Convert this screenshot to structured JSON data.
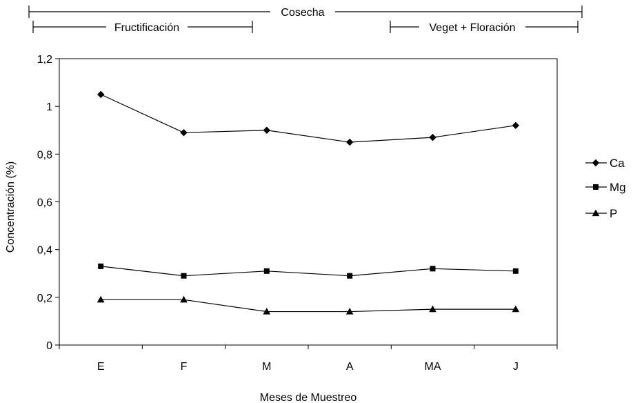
{
  "chart_data": {
    "type": "line",
    "title": "",
    "xlabel": "Meses de Muestreo",
    "ylabel": "Concentración (%)",
    "categories": [
      "E",
      "F",
      "M",
      "A",
      "MA",
      "J"
    ],
    "ylim": [
      0,
      1.2
    ],
    "yticks": [
      {
        "value": 0,
        "label": "0"
      },
      {
        "value": 0.2,
        "label": "0,2"
      },
      {
        "value": 0.4,
        "label": "0,4"
      },
      {
        "value": 0.6,
        "label": "0,6"
      },
      {
        "value": 0.8,
        "label": "0,8"
      },
      {
        "value": 1.0,
        "label": "1"
      },
      {
        "value": 1.2,
        "label": "1,2"
      }
    ],
    "grid": false,
    "legend_position": "right",
    "series": [
      {
        "name": "Ca",
        "marker": "diamond",
        "values": [
          1.05,
          0.89,
          0.9,
          0.85,
          0.87,
          0.92
        ]
      },
      {
        "name": "Mg",
        "marker": "square",
        "values": [
          0.33,
          0.29,
          0.31,
          0.29,
          0.32,
          0.31
        ]
      },
      {
        "name": "P",
        "marker": "triangle",
        "values": [
          0.19,
          0.19,
          0.14,
          0.14,
          0.15,
          0.15
        ]
      }
    ],
    "annotations": {
      "cosecha": "Cosecha",
      "fructificacion": "Fructificación",
      "veget_floracion": "Veget + Floración"
    }
  }
}
